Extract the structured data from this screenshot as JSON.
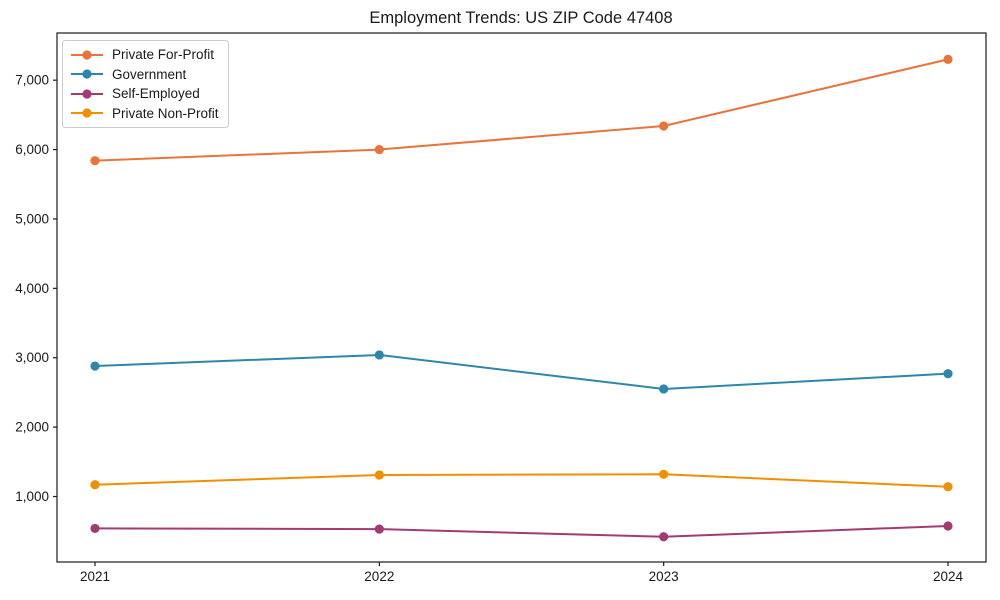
{
  "title": "Employment Trends: US ZIP Code 47408",
  "chart_data": {
    "type": "line",
    "title": "Employment Trends: US ZIP Code 47408",
    "xlabel": "",
    "ylabel": "",
    "grid": false,
    "legend_position": "upper-left",
    "marker": "circle",
    "background_color": "#ffffff",
    "axis_color": "#1a1a1a",
    "legend_border_color": "#cccccc",
    "categories": [
      "2021",
      "2022",
      "2023",
      "2024"
    ],
    "series": [
      {
        "name": "Private For-Profit",
        "color": "#E8743B",
        "values": [
          5840,
          6000,
          6340,
          7300
        ]
      },
      {
        "name": "Government",
        "color": "#2E86AB",
        "values": [
          2880,
          3040,
          2550,
          2770
        ]
      },
      {
        "name": "Self-Employed",
        "color": "#A23B72",
        "values": [
          540,
          530,
          420,
          575
        ]
      },
      {
        "name": "Private Non-Profit",
        "color": "#F18F01",
        "values": [
          1170,
          1310,
          1320,
          1140
        ]
      }
    ],
    "ylim": [
      56,
      7680
    ],
    "yticks": [
      1000,
      2000,
      3000,
      4000,
      5000,
      6000,
      7000
    ],
    "ytick_labels": [
      "1,000",
      "2,000",
      "3,000",
      "4,000",
      "5,000",
      "6,000",
      "7,000"
    ]
  }
}
